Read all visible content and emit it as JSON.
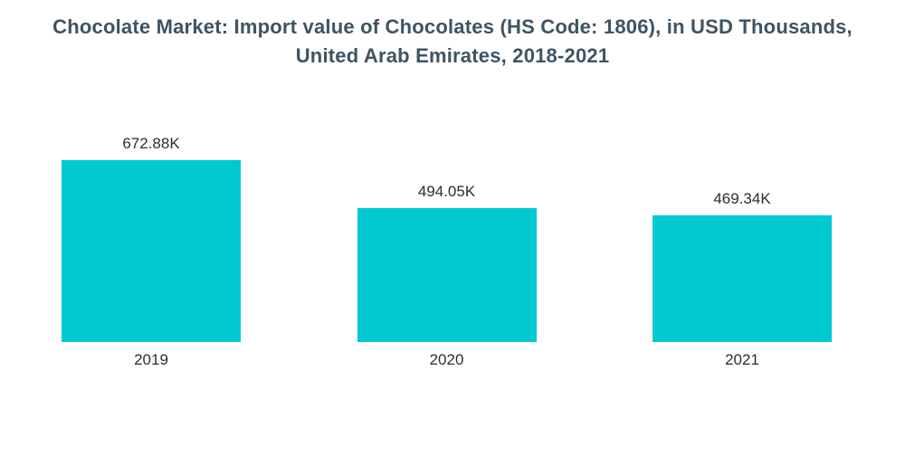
{
  "colors": {
    "bar": "#00c9d2",
    "title_text": "#3e5463",
    "label_text": "#2d2d2d",
    "background": "#ffffff"
  },
  "chart_data": {
    "type": "bar",
    "title": "Chocolate Market: Import value of Chocolates (HS Code: 1806), in USD Thousands, United Arab Emirates, 2018-2021",
    "categories": [
      "2019",
      "2020",
      "2021"
    ],
    "values": [
      672.88,
      494.05,
      469.34
    ],
    "value_labels": [
      "672.88K",
      "494.05K",
      "469.34K"
    ],
    "series_unit": "USD Thousands",
    "xlabel": "",
    "ylabel": "",
    "ylim": [
      0,
      700
    ],
    "grid": false,
    "legend": "none",
    "axes_hidden": true
  }
}
